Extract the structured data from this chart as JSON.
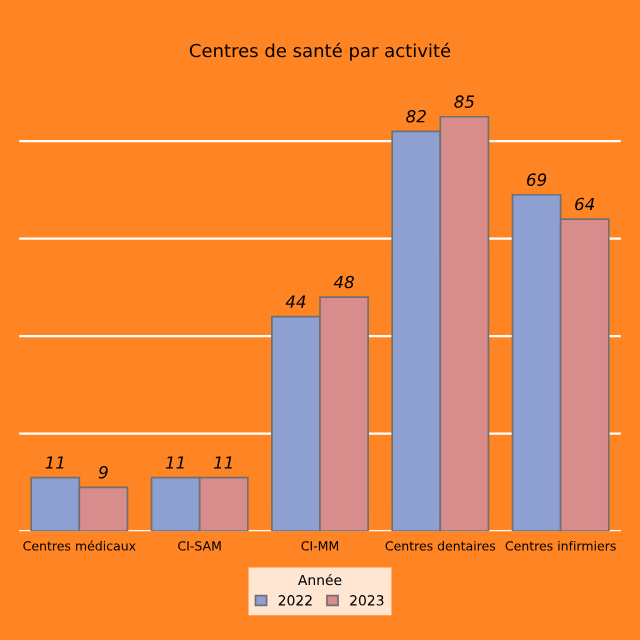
{
  "chart_data": {
    "type": "bar",
    "title": "Centres de santé par activité",
    "categories": [
      "Centres médicaux",
      "CI-SAM",
      "CI-MM",
      "Centres dentaires",
      "Centres infirmiers"
    ],
    "series": [
      {
        "name": "2022",
        "color": "#8e9fd1",
        "values": [
          11,
          11,
          44,
          82,
          69
        ]
      },
      {
        "name": "2023",
        "color": "#d98c8c",
        "values": [
          9,
          11,
          48,
          85,
          64
        ]
      }
    ],
    "yticks": [
      {
        "value": 0,
        "label": null
      },
      {
        "value": 20,
        "label": null
      },
      {
        "value": 40,
        "label": null
      },
      {
        "value": 60,
        "label": null
      },
      {
        "value": 80,
        "label": null
      }
    ],
    "grid": "y",
    "legend": "bottom",
    "legend_title": "Année",
    "data_labels": true,
    "tick_labels": "x"
  }
}
